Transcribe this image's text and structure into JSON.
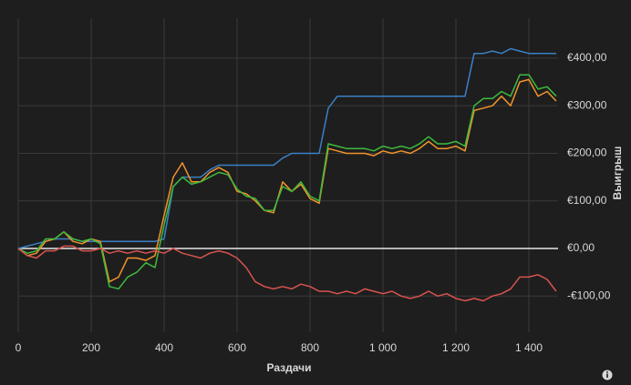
{
  "chart_data": {
    "type": "line",
    "x_label": "Раздачи",
    "y_label": "Выигрыш",
    "x": [
      0,
      25,
      50,
      75,
      100,
      125,
      150,
      175,
      200,
      225,
      250,
      275,
      300,
      325,
      350,
      375,
      400,
      425,
      450,
      475,
      500,
      525,
      550,
      575,
      600,
      625,
      650,
      675,
      700,
      725,
      750,
      775,
      800,
      825,
      850,
      875,
      900,
      925,
      950,
      975,
      1000,
      1025,
      1050,
      1075,
      1100,
      1125,
      1150,
      1175,
      1200,
      1225,
      1250,
      1275,
      1300,
      1325,
      1350,
      1375,
      1400,
      1425,
      1450,
      1475
    ],
    "series": [
      {
        "color": "#3b80c6",
        "values": [
          0,
          5,
          10,
          15,
          20,
          20,
          20,
          15,
          15,
          15,
          15,
          15,
          15,
          15,
          15,
          15,
          20,
          130,
          150,
          150,
          150,
          165,
          175,
          175,
          175,
          175,
          175,
          175,
          175,
          190,
          200,
          200,
          200,
          200,
          295,
          320,
          320,
          320,
          320,
          320,
          320,
          320,
          320,
          320,
          320,
          320,
          320,
          320,
          320,
          320,
          410,
          410,
          415,
          410,
          420,
          415,
          410,
          410,
          410,
          410
        ]
      },
      {
        "color": "#f0932b",
        "values": [
          0,
          -15,
          -10,
          15,
          20,
          35,
          15,
          10,
          20,
          15,
          -70,
          -60,
          -20,
          -20,
          -25,
          -15,
          70,
          150,
          180,
          140,
          140,
          160,
          170,
          160,
          120,
          115,
          100,
          80,
          75,
          140,
          120,
          135,
          105,
          95,
          210,
          205,
          200,
          200,
          200,
          195,
          205,
          200,
          205,
          200,
          210,
          225,
          210,
          210,
          215,
          205,
          290,
          295,
          300,
          320,
          300,
          350,
          355,
          320,
          330,
          310
        ]
      },
      {
        "color": "#3dba3d",
        "values": [
          0,
          -10,
          -5,
          20,
          20,
          35,
          20,
          15,
          20,
          10,
          -80,
          -85,
          -60,
          -50,
          -30,
          -40,
          50,
          130,
          150,
          135,
          140,
          150,
          160,
          155,
          125,
          110,
          105,
          80,
          80,
          130,
          120,
          140,
          110,
          100,
          220,
          215,
          210,
          210,
          210,
          205,
          215,
          210,
          215,
          210,
          220,
          235,
          220,
          220,
          225,
          215,
          300,
          315,
          315,
          330,
          320,
          365,
          365,
          335,
          340,
          320
        ]
      },
      {
        "color": "#d9534f",
        "values": [
          0,
          -15,
          -20,
          -5,
          -5,
          5,
          5,
          -5,
          -5,
          0,
          -10,
          -5,
          -10,
          -5,
          -10,
          -5,
          -10,
          0,
          -10,
          -15,
          -20,
          -10,
          -5,
          -10,
          -20,
          -40,
          -70,
          -80,
          -85,
          -80,
          -85,
          -75,
          -80,
          -90,
          -90,
          -95,
          -90,
          -95,
          -85,
          -90,
          -95,
          -90,
          -100,
          -105,
          -100,
          -90,
          -100,
          -95,
          -105,
          -110,
          -105,
          -110,
          -100,
          -95,
          -85,
          -60,
          -60,
          -55,
          -65,
          -90
        ]
      }
    ],
    "xlim": [
      0,
      1480
    ],
    "ylim": [
      -176,
      484
    ],
    "xticks": [
      0,
      200,
      400,
      600,
      800,
      {
        "value": 1000,
        "label": "1 000"
      },
      {
        "value": 1200,
        "label": "1 200"
      },
      {
        "value": 1400,
        "label": "1 400"
      }
    ],
    "yticks": [
      {
        "value": -100,
        "label": "-€100,00"
      },
      {
        "value": 0,
        "label": "€0,00"
      },
      {
        "value": 100,
        "label": "€100,00"
      },
      {
        "value": 200,
        "label": "€200,00"
      },
      {
        "value": 300,
        "label": "€300,00"
      },
      {
        "value": 400,
        "label": "€400,00"
      }
    ],
    "grid": true
  }
}
